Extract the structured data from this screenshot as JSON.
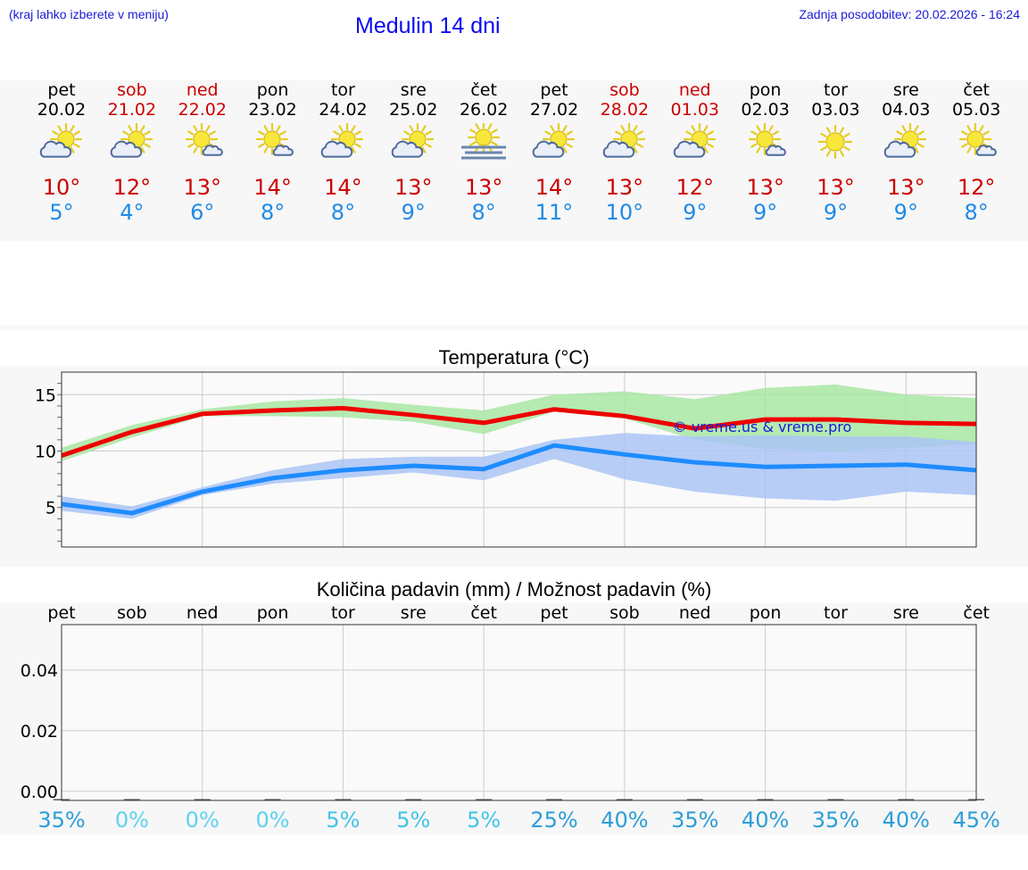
{
  "header": {
    "hint": "(kraj lahko izberete v meniju)",
    "title": "Medulin 14 dni",
    "updated": "Zadnja posodobitev: 20.02.2026 - 16:24"
  },
  "days": [
    {
      "name": "pet",
      "date": "20.02",
      "weekend": false,
      "icon": "partly-cloudy-icon",
      "max": "10°",
      "min": "5°"
    },
    {
      "name": "sob",
      "date": "21.02",
      "weekend": true,
      "icon": "partly-cloudy-icon",
      "max": "12°",
      "min": "4°"
    },
    {
      "name": "ned",
      "date": "22.02",
      "weekend": true,
      "icon": "sun-small-cloud-icon",
      "max": "13°",
      "min": "6°"
    },
    {
      "name": "pon",
      "date": "23.02",
      "weekend": false,
      "icon": "sun-small-cloud-icon",
      "max": "14°",
      "min": "8°"
    },
    {
      "name": "tor",
      "date": "24.02",
      "weekend": false,
      "icon": "partly-cloudy-icon",
      "max": "14°",
      "min": "8°"
    },
    {
      "name": "sre",
      "date": "25.02",
      "weekend": false,
      "icon": "partly-cloudy-icon",
      "max": "13°",
      "min": "9°"
    },
    {
      "name": "čet",
      "date": "26.02",
      "weekend": false,
      "icon": "sun-fog-icon",
      "max": "13°",
      "min": "8°"
    },
    {
      "name": "pet",
      "date": "27.02",
      "weekend": false,
      "icon": "partly-cloudy-icon",
      "max": "14°",
      "min": "11°"
    },
    {
      "name": "sob",
      "date": "28.02",
      "weekend": true,
      "icon": "partly-cloudy-icon",
      "max": "13°",
      "min": "10°"
    },
    {
      "name": "ned",
      "date": "01.03",
      "weekend": true,
      "icon": "partly-cloudy-icon",
      "max": "12°",
      "min": "9°"
    },
    {
      "name": "pon",
      "date": "02.03",
      "weekend": false,
      "icon": "sun-small-cloud-icon",
      "max": "13°",
      "min": "9°"
    },
    {
      "name": "tor",
      "date": "03.03",
      "weekend": false,
      "icon": "sun-icon",
      "max": "13°",
      "min": "9°"
    },
    {
      "name": "sre",
      "date": "04.03",
      "weekend": false,
      "icon": "partly-cloudy-icon",
      "max": "13°",
      "min": "9°"
    },
    {
      "name": "čet",
      "date": "05.03",
      "weekend": false,
      "icon": "sun-small-cloud-icon",
      "max": "12°",
      "min": "8°"
    }
  ],
  "colors": {
    "max_line": "#ee0000",
    "min_line": "#1e8cff",
    "max_band": "#a8e6a3",
    "min_band": "#aac4f4",
    "weekend": "#cc0000",
    "header_text": "#1a1ad6"
  },
  "chart_data": [
    {
      "type": "line",
      "title": "Temperatura (°C)",
      "ylim": [
        1.5,
        17
      ],
      "yticks": [
        5,
        10,
        15
      ],
      "x": [
        0,
        1,
        2,
        3,
        4,
        5,
        6,
        7,
        8,
        9,
        10,
        11,
        12,
        13
      ],
      "series": [
        {
          "name": "max",
          "values": [
            9.6,
            11.7,
            13.3,
            13.6,
            13.8,
            13.2,
            12.5,
            13.7,
            13.1,
            12.0,
            12.8,
            12.8,
            12.5,
            12.4
          ],
          "band_low": [
            9.1,
            11.2,
            13.1,
            13.1,
            13.0,
            12.6,
            11.5,
            13.5,
            12.9,
            11.0,
            10.2,
            10.0,
            10.3,
            10.6
          ],
          "band_high": [
            10.3,
            12.3,
            13.7,
            14.4,
            14.7,
            14.1,
            13.6,
            15.0,
            15.3,
            14.6,
            15.6,
            15.9,
            15.0,
            14.7
          ]
        },
        {
          "name": "min",
          "values": [
            5.3,
            4.5,
            6.4,
            7.6,
            8.3,
            8.7,
            8.4,
            10.5,
            9.7,
            9.0,
            8.6,
            8.7,
            8.8,
            8.3
          ],
          "band_low": [
            4.7,
            4.0,
            6.1,
            7.1,
            7.6,
            8.1,
            7.4,
            9.3,
            7.5,
            6.4,
            5.8,
            5.6,
            6.4,
            6.1
          ],
          "band_high": [
            6.0,
            5.1,
            6.8,
            8.3,
            9.3,
            9.5,
            9.5,
            11.0,
            11.6,
            11.3,
            11.4,
            11.3,
            11.3,
            10.8
          ]
        }
      ],
      "watermark": "© vreme.us & vreme.pro"
    },
    {
      "type": "bar",
      "title": "Količina padavin (mm) / Možnost padavin (%)",
      "categories": [
        "pet",
        "sob",
        "ned",
        "pon",
        "tor",
        "sre",
        "čet",
        "pet",
        "sob",
        "ned",
        "pon",
        "tor",
        "sre",
        "čet"
      ],
      "values": [
        0,
        0,
        0,
        0,
        0,
        0,
        0,
        0,
        0,
        0,
        0,
        0,
        0,
        0
      ],
      "ylim": [
        -0.003,
        0.055
      ],
      "yticks": [
        "0.00",
        "0.02",
        "0.04"
      ],
      "ytick_values": [
        0,
        0.02,
        0.04
      ],
      "chance": [
        "35%",
        "0%",
        "0%",
        "0%",
        "5%",
        "5%",
        "5%",
        "25%",
        "40%",
        "35%",
        "40%",
        "35%",
        "40%",
        "45%"
      ]
    }
  ]
}
